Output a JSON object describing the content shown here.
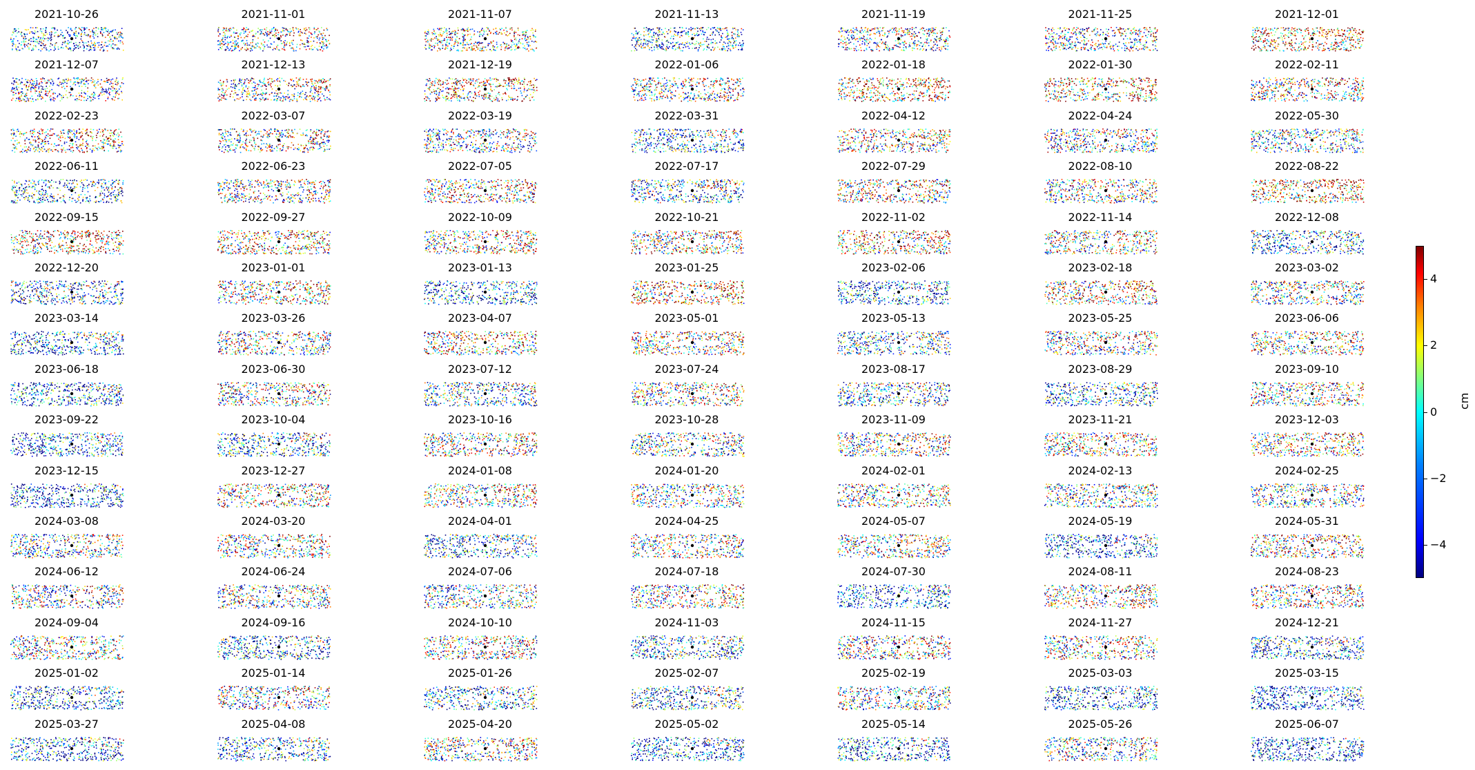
{
  "chart_data": {
    "type": "heatmap",
    "panels": [
      "2021-10-26",
      "2021-11-01",
      "2021-11-07",
      "2021-11-13",
      "2021-11-19",
      "2021-11-25",
      "2021-12-01",
      "2021-12-07",
      "2021-12-13",
      "2021-12-19",
      "2022-01-06",
      "2022-01-18",
      "2022-01-30",
      "2022-02-11",
      "2022-02-23",
      "2022-03-07",
      "2022-03-19",
      "2022-03-31",
      "2022-04-12",
      "2022-04-24",
      "2022-05-30",
      "2022-06-11",
      "2022-06-23",
      "2022-07-05",
      "2022-07-17",
      "2022-07-29",
      "2022-08-10",
      "2022-08-22",
      "2022-09-15",
      "2022-09-27",
      "2022-10-09",
      "2022-10-21",
      "2022-11-02",
      "2022-11-14",
      "2022-12-08",
      "2022-12-20",
      "2023-01-01",
      "2023-01-13",
      "2023-01-25",
      "2023-02-06",
      "2023-02-18",
      "2023-03-02",
      "2023-03-14",
      "2023-03-26",
      "2023-04-07",
      "2023-05-01",
      "2023-05-13",
      "2023-05-25",
      "2023-06-06",
      "2023-06-18",
      "2023-06-30",
      "2023-07-12",
      "2023-07-24",
      "2023-08-17",
      "2023-08-29",
      "2023-09-10",
      "2023-09-22",
      "2023-10-04",
      "2023-10-16",
      "2023-10-28",
      "2023-11-09",
      "2023-11-21",
      "2023-12-03",
      "2023-12-15",
      "2023-12-27",
      "2024-01-08",
      "2024-01-20",
      "2024-02-01",
      "2024-02-13",
      "2024-02-25",
      "2024-03-08",
      "2024-03-20",
      "2024-04-01",
      "2024-04-25",
      "2024-05-07",
      "2024-05-19",
      "2024-05-31",
      "2024-06-12",
      "2024-06-24",
      "2024-07-06",
      "2024-07-18",
      "2024-07-30",
      "2024-08-11",
      "2024-08-23",
      "2024-09-04",
      "2024-09-16",
      "2024-10-10",
      "2024-11-03",
      "2024-11-15",
      "2024-11-27",
      "2024-12-21",
      "2025-01-02",
      "2025-01-14",
      "2025-01-26",
      "2025-02-07",
      "2025-02-19",
      "2025-03-03",
      "2025-03-15",
      "2025-03-27",
      "2025-04-08",
      "2025-04-20",
      "2025-05-02",
      "2025-05-14",
      "2025-05-26",
      "2025-06-07"
    ],
    "grid": {
      "rows": 15,
      "cols": 7
    },
    "colormap": "jet",
    "vmin": -5,
    "vmax": 5,
    "colorbar": {
      "label": "cm",
      "ticks": [
        4,
        2,
        0,
        -2,
        -4
      ],
      "tick_labels": [
        "4",
        "2",
        "0",
        "−2",
        "−4"
      ],
      "position": "right"
    },
    "axes_visible": false
  }
}
